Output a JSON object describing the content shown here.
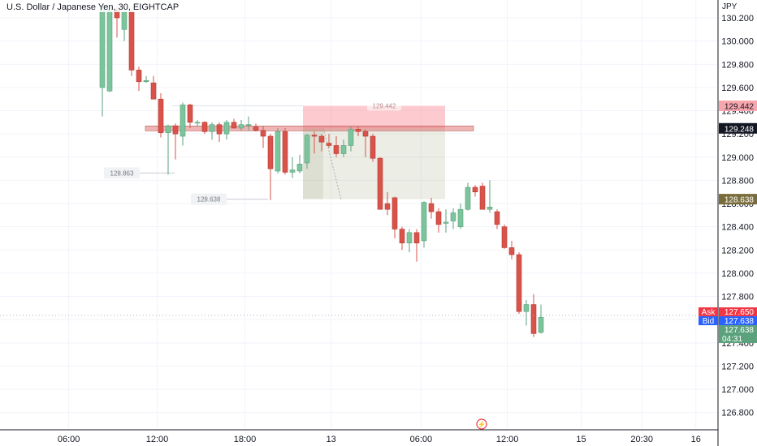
{
  "header": {
    "title": "U.S. Dollar / Japanese Yen, 30, EIGHTCAP",
    "currency": "JPY"
  },
  "colors": {
    "up": "#5aa17c",
    "down": "#d9534a",
    "up_body": "#7cc49b",
    "grid": "#f0f3fa"
  },
  "chart_data": {
    "type": "candlestick",
    "y_axis": {
      "range": [
        126.7,
        130.27
      ],
      "ticks": [
        "130.200",
        "130.000",
        "129.800",
        "129.600",
        "129.400",
        "129.200",
        "129.000",
        "128.800",
        "128.600",
        "128.400",
        "128.200",
        "128.000",
        "127.800",
        "127.600",
        "127.400",
        "127.200",
        "127.000",
        "126.800"
      ]
    },
    "x_axis": {
      "ticks": [
        {
          "label": "06:00",
          "index": -4.6
        },
        {
          "label": "12:00",
          "index": 7.5
        },
        {
          "label": "18:00",
          "index": 19.5
        },
        {
          "label": "13",
          "index": 31.3
        },
        {
          "label": "06:00",
          "index": 43.6
        },
        {
          "label": "12:00",
          "index": 55.4
        },
        {
          "label": "15",
          "index": 65.5
        },
        {
          "label": "20:30",
          "index": 73.8
        },
        {
          "label": "16",
          "index": 81.2
        }
      ]
    },
    "candles": [
      {
        "o": 129.6,
        "h": 130.3,
        "l": 129.35,
        "c": 130.3
      },
      {
        "o": 129.57,
        "h": 130.3,
        "l": 129.56,
        "c": 130.27
      },
      {
        "o": 130.27,
        "h": 130.3,
        "l": 130.03,
        "c": 130.2
      },
      {
        "o": 130.1,
        "h": 130.3,
        "l": 130.0,
        "c": 130.25
      },
      {
        "o": 130.25,
        "h": 130.3,
        "l": 129.7,
        "c": 129.75
      },
      {
        "o": 129.75,
        "h": 129.78,
        "l": 129.57,
        "c": 129.65
      },
      {
        "o": 129.65,
        "h": 129.7,
        "l": 129.64,
        "c": 129.66
      },
      {
        "o": 129.64,
        "h": 129.7,
        "l": 129.5,
        "c": 129.5
      },
      {
        "o": 129.5,
        "h": 129.55,
        "l": 129.17,
        "c": 129.21
      },
      {
        "o": 129.21,
        "h": 129.28,
        "l": 128.85,
        "c": 129.27
      },
      {
        "o": 129.27,
        "h": 129.29,
        "l": 128.98,
        "c": 129.2
      },
      {
        "o": 129.18,
        "h": 129.47,
        "l": 129.1,
        "c": 129.45
      },
      {
        "o": 129.45,
        "h": 129.46,
        "l": 129.25,
        "c": 129.3
      },
      {
        "o": 129.3,
        "h": 129.32,
        "l": 129.26,
        "c": 129.3
      },
      {
        "o": 129.3,
        "h": 129.31,
        "l": 129.2,
        "c": 129.22
      },
      {
        "o": 129.22,
        "h": 129.3,
        "l": 129.15,
        "c": 129.28
      },
      {
        "o": 129.28,
        "h": 129.3,
        "l": 129.13,
        "c": 129.2
      },
      {
        "o": 129.2,
        "h": 129.32,
        "l": 129.15,
        "c": 129.3
      },
      {
        "o": 129.3,
        "h": 129.33,
        "l": 129.25,
        "c": 129.25
      },
      {
        "o": 129.25,
        "h": 129.32,
        "l": 129.23,
        "c": 129.28
      },
      {
        "o": 129.28,
        "h": 129.35,
        "l": 129.23,
        "c": 129.28
      },
      {
        "o": 129.26,
        "h": 129.29,
        "l": 129.22,
        "c": 129.23
      },
      {
        "o": 129.23,
        "h": 129.27,
        "l": 129.08,
        "c": 129.18
      },
      {
        "o": 129.18,
        "h": 129.2,
        "l": 128.63,
        "c": 128.9
      },
      {
        "o": 128.88,
        "h": 129.25,
        "l": 128.86,
        "c": 129.22
      },
      {
        "o": 129.22,
        "h": 129.25,
        "l": 128.85,
        "c": 128.87
      },
      {
        "o": 128.87,
        "h": 129.0,
        "l": 128.82,
        "c": 128.89
      },
      {
        "o": 128.88,
        "h": 129.02,
        "l": 128.86,
        "c": 128.94
      },
      {
        "o": 128.95,
        "h": 129.2,
        "l": 128.9,
        "c": 129.19
      },
      {
        "o": 129.19,
        "h": 129.22,
        "l": 129.03,
        "c": 129.18
      },
      {
        "o": 129.18,
        "h": 129.2,
        "l": 129.05,
        "c": 129.13
      },
      {
        "o": 129.12,
        "h": 129.2,
        "l": 129.08,
        "c": 129.1
      },
      {
        "o": 129.1,
        "h": 129.18,
        "l": 129.0,
        "c": 129.03
      },
      {
        "o": 129.03,
        "h": 129.15,
        "l": 129.0,
        "c": 129.1
      },
      {
        "o": 129.1,
        "h": 129.26,
        "l": 129.05,
        "c": 129.24
      },
      {
        "o": 129.24,
        "h": 129.26,
        "l": 129.18,
        "c": 129.22
      },
      {
        "o": 129.22,
        "h": 129.24,
        "l": 129.0,
        "c": 129.18
      },
      {
        "o": 129.18,
        "h": 129.2,
        "l": 128.96,
        "c": 128.99
      },
      {
        "o": 128.99,
        "h": 129.0,
        "l": 128.55,
        "c": 128.55
      },
      {
        "o": 128.6,
        "h": 128.7,
        "l": 128.5,
        "c": 128.55
      },
      {
        "o": 128.65,
        "h": 128.66,
        "l": 128.3,
        "c": 128.38
      },
      {
        "o": 128.38,
        "h": 128.4,
        "l": 128.2,
        "c": 128.26
      },
      {
        "o": 128.26,
        "h": 128.38,
        "l": 128.18,
        "c": 128.35
      },
      {
        "o": 128.35,
        "h": 128.38,
        "l": 128.1,
        "c": 128.26
      },
      {
        "o": 128.28,
        "h": 128.62,
        "l": 128.22,
        "c": 128.61
      },
      {
        "o": 128.6,
        "h": 128.65,
        "l": 128.47,
        "c": 128.53
      },
      {
        "o": 128.53,
        "h": 128.56,
        "l": 128.35,
        "c": 128.42
      },
      {
        "o": 128.43,
        "h": 128.55,
        "l": 128.35,
        "c": 128.44
      },
      {
        "o": 128.45,
        "h": 128.56,
        "l": 128.38,
        "c": 128.52
      },
      {
        "o": 128.4,
        "h": 128.6,
        "l": 128.38,
        "c": 128.55
      },
      {
        "o": 128.55,
        "h": 128.78,
        "l": 128.54,
        "c": 128.74
      },
      {
        "o": 128.74,
        "h": 128.76,
        "l": 128.66,
        "c": 128.7
      },
      {
        "o": 128.75,
        "h": 128.78,
        "l": 128.55,
        "c": 128.55
      },
      {
        "o": 128.55,
        "h": 128.8,
        "l": 128.52,
        "c": 128.57
      },
      {
        "o": 128.53,
        "h": 128.55,
        "l": 128.38,
        "c": 128.42
      },
      {
        "o": 128.4,
        "h": 128.42,
        "l": 128.21,
        "c": 128.22
      },
      {
        "o": 128.22,
        "h": 128.28,
        "l": 128.12,
        "c": 128.16
      },
      {
        "o": 128.16,
        "h": 128.18,
        "l": 127.65,
        "c": 127.67
      },
      {
        "o": 127.67,
        "h": 127.77,
        "l": 127.55,
        "c": 127.73
      },
      {
        "o": 127.73,
        "h": 127.82,
        "l": 127.45,
        "c": 127.48
      },
      {
        "o": 127.49,
        "h": 127.73,
        "l": 127.48,
        "c": 127.62
      }
    ],
    "annotations": {
      "zone_top": 129.442,
      "zone_line": 129.248,
      "zone_bottom": 128.638,
      "zone_bottom_label": "128.638",
      "zone_top_label": "129.442",
      "level_1": "128.863",
      "level_1_value": 128.863,
      "level_2": "128.638",
      "level_2_value": 128.638
    },
    "price_tags": {
      "upper": {
        "label": "129.442",
        "value": 129.442
      },
      "line": {
        "label": "129.248",
        "value": 129.248
      },
      "lower": {
        "label": "128.638",
        "value": 128.638
      },
      "ask": {
        "tag": "Ask",
        "label": "127.650",
        "value": 127.65
      },
      "bid": {
        "tag": "Bid",
        "label": "127.638",
        "value": 127.638
      },
      "last": {
        "label": "127.638",
        "countdown": "04:31",
        "value": 127.638
      }
    }
  }
}
